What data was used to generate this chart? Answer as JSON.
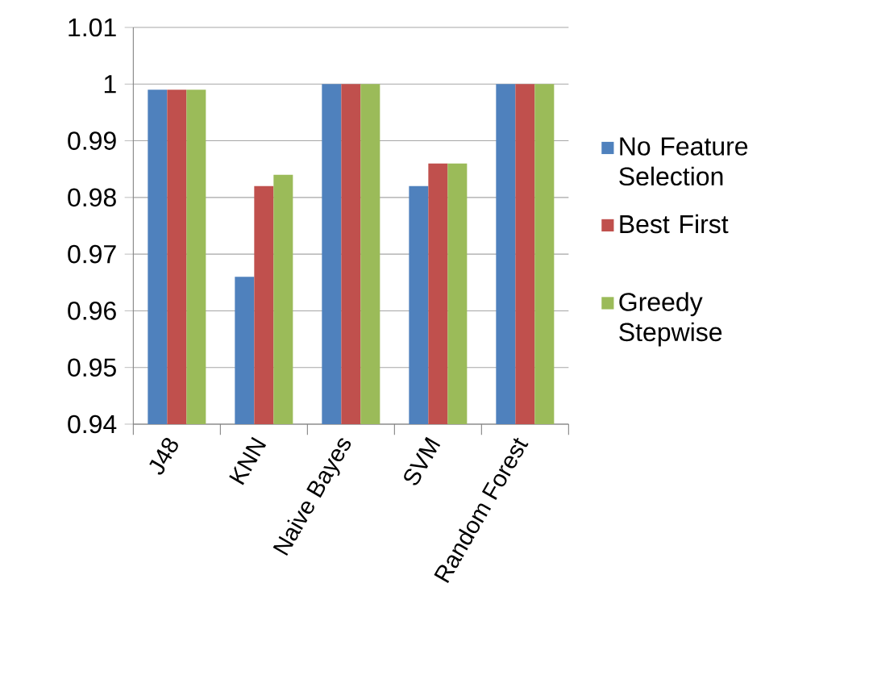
{
  "chart_data": {
    "type": "bar",
    "categories": [
      "J48",
      "KNN",
      "Naive Bayes",
      "SVM",
      "Random Forest"
    ],
    "series": [
      {
        "name": "No Feature Selection",
        "color": "#4f81bd",
        "values": [
          0.999,
          0.966,
          1,
          0.982,
          1
        ]
      },
      {
        "name": "Best First",
        "color": "#c0504d",
        "values": [
          0.999,
          0.982,
          1,
          0.986,
          1
        ]
      },
      {
        "name": "Greedy Stepwise",
        "color": "#9bbb59",
        "values": [
          0.999,
          0.984,
          1,
          0.986,
          1
        ]
      }
    ],
    "ylim": [
      0.94,
      1.01
    ],
    "yticks": [
      0.94,
      0.95,
      0.96,
      0.97,
      0.98,
      0.99,
      1,
      1.01
    ],
    "grid": "y",
    "legend": "right"
  }
}
